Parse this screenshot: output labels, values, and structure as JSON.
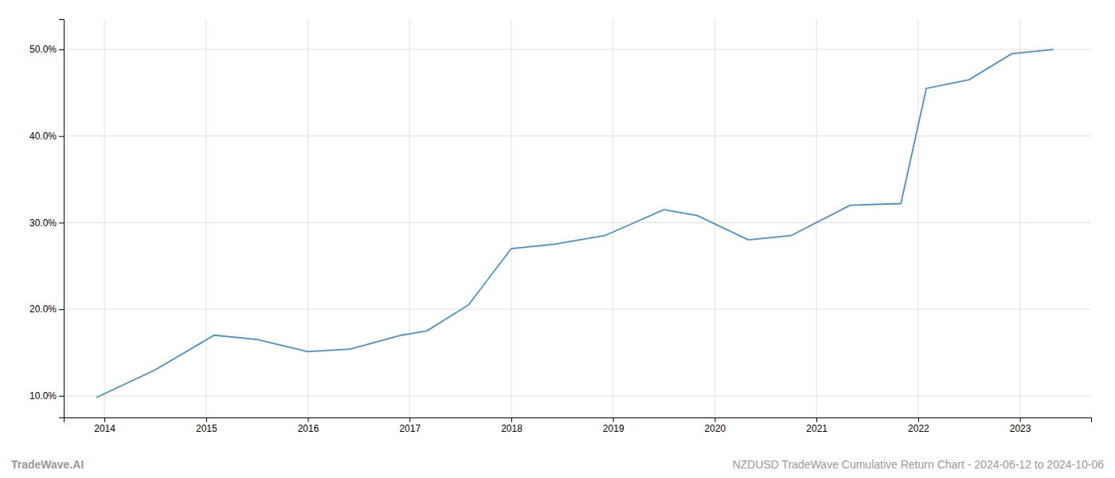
{
  "chart_data": {
    "type": "line",
    "x": [
      2013.92,
      2014.5,
      2015.08,
      2015.5,
      2016.0,
      2016.42,
      2016.92,
      2017.17,
      2017.58,
      2018.0,
      2018.42,
      2018.92,
      2019.5,
      2019.83,
      2020.33,
      2020.75,
      2021.33,
      2021.83,
      2022.08,
      2022.5,
      2022.92,
      2023.33
    ],
    "values": [
      9.8,
      13.0,
      17.0,
      16.5,
      15.1,
      15.4,
      17.0,
      17.5,
      20.5,
      27.0,
      27.5,
      28.5,
      31.5,
      30.8,
      28.0,
      28.5,
      32.0,
      32.2,
      45.5,
      46.5,
      49.5,
      50.0
    ],
    "color": "#4a90c4",
    "xlim": [
      2013.6,
      2023.7
    ],
    "xticks": [
      2014,
      2015,
      2016,
      2017,
      2018,
      2019,
      2020,
      2021,
      2022,
      2023
    ],
    "ylim": [
      7.5,
      53.5
    ],
    "yticks": [
      {
        "value": 10.0,
        "label": "10.0%"
      },
      {
        "value": 20.0,
        "label": "20.0%"
      },
      {
        "value": 30.0,
        "label": "30.0%"
      },
      {
        "value": 40.0,
        "label": "40.0%"
      },
      {
        "value": 50.0,
        "label": "50.0%"
      }
    ],
    "grid": true,
    "annotations": [
      "TradeWave.AI",
      "NZDUSD TradeWave Cumulative Return Chart - 2024-06-12 to 2024-10-06"
    ]
  }
}
